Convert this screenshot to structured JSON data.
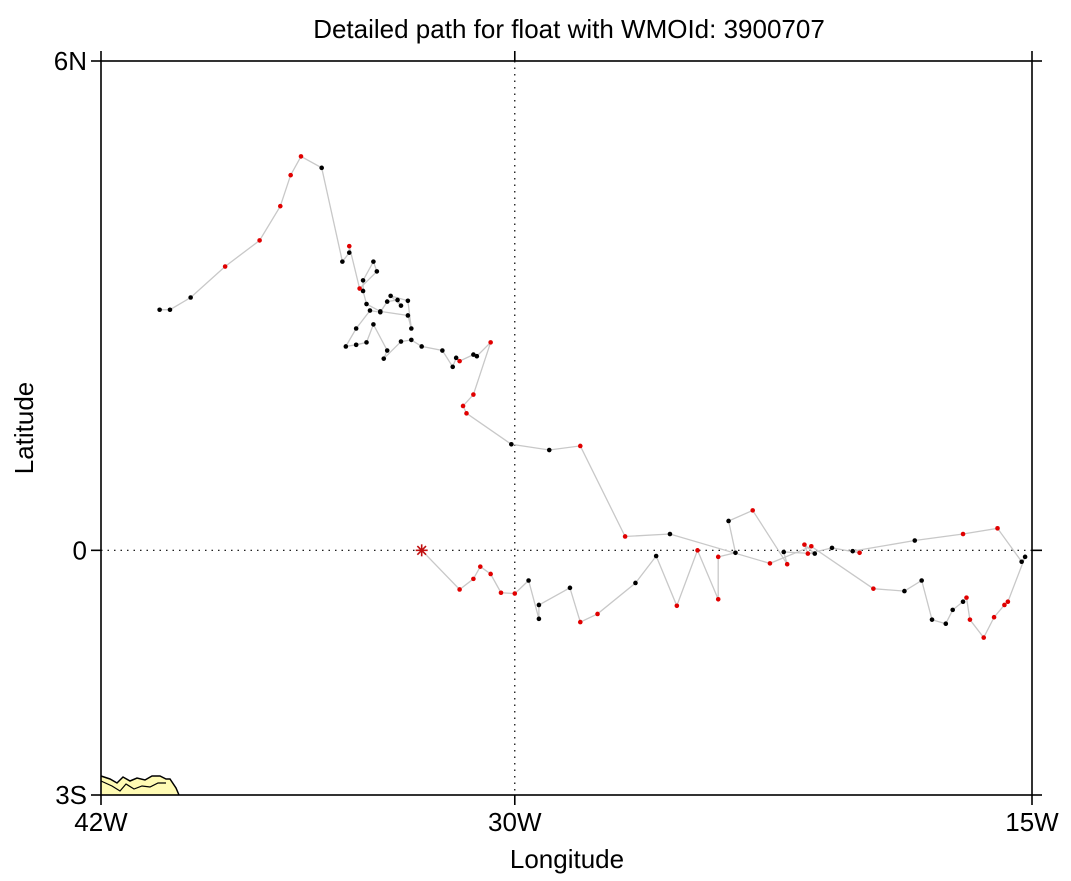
{
  "chart_data": {
    "type": "scatter",
    "title": "Detailed path for float with WMOId: 3900707",
    "xlabel": "Longitude",
    "ylabel": "Latitude",
    "xlim": [
      -42,
      -15
    ],
    "ylim": [
      -3,
      6
    ],
    "x_ticks": [
      {
        "value": -42,
        "label": "42W"
      },
      {
        "value": -30,
        "label": "30W"
      },
      {
        "value": -15,
        "label": "15W"
      }
    ],
    "y_ticks": [
      {
        "value": 6,
        "label": "6N"
      },
      {
        "value": 0,
        "label": "0"
      },
      {
        "value": -3,
        "label": "3S"
      }
    ],
    "reference_lines": {
      "x": -30,
      "y": 0
    },
    "grid": false,
    "deploy_marker": {
      "lon": -32.7,
      "lat": 0.0
    },
    "colors": {
      "red": "#e00000",
      "black": "#000000",
      "path": "#c8c8c8",
      "land": "#fffbb4"
    },
    "path": [
      {
        "lon": -32.7,
        "lat": 0.0,
        "c": "start"
      },
      {
        "lon": -31.6,
        "lat": -0.48,
        "c": "red"
      },
      {
        "lon": -31.2,
        "lat": -0.35,
        "c": "red"
      },
      {
        "lon": -31.0,
        "lat": -0.2,
        "c": "red"
      },
      {
        "lon": -30.7,
        "lat": -0.29,
        "c": "red"
      },
      {
        "lon": -30.4,
        "lat": -0.52,
        "c": "red"
      },
      {
        "lon": -30.0,
        "lat": -0.53,
        "c": "red"
      },
      {
        "lon": -29.6,
        "lat": -0.37,
        "c": "black"
      },
      {
        "lon": -29.3,
        "lat": -0.84,
        "c": "black"
      },
      {
        "lon": -29.3,
        "lat": -0.67,
        "c": "black"
      },
      {
        "lon": -28.4,
        "lat": -0.46,
        "c": "black"
      },
      {
        "lon": -28.1,
        "lat": -0.88,
        "c": "red"
      },
      {
        "lon": -27.6,
        "lat": -0.78,
        "c": "red"
      },
      {
        "lon": -26.5,
        "lat": -0.4,
        "c": "black"
      },
      {
        "lon": -25.9,
        "lat": -0.07,
        "c": "black"
      },
      {
        "lon": -25.3,
        "lat": -0.68,
        "c": "red"
      },
      {
        "lon": -24.7,
        "lat": 0.0,
        "c": "red"
      },
      {
        "lon": -24.1,
        "lat": -0.6,
        "c": "red"
      },
      {
        "lon": -24.1,
        "lat": -0.08,
        "c": "red"
      },
      {
        "lon": -23.6,
        "lat": -0.03,
        "c": "black"
      },
      {
        "lon": -23.8,
        "lat": 0.36,
        "c": "black"
      },
      {
        "lon": -23.1,
        "lat": 0.49,
        "c": "red"
      },
      {
        "lon": -22.1,
        "lat": -0.17,
        "c": "red"
      },
      {
        "lon": -22.2,
        "lat": -0.02,
        "c": "black"
      },
      {
        "lon": -21.3,
        "lat": -0.04,
        "c": "black"
      },
      {
        "lon": -21.6,
        "lat": 0.07,
        "c": "red"
      },
      {
        "lon": -21.5,
        "lat": -0.04,
        "c": "red"
      },
      {
        "lon": -20.8,
        "lat": 0.03,
        "c": "black"
      },
      {
        "lon": -20.0,
        "lat": -0.03,
        "c": "red"
      },
      {
        "lon": -20.2,
        "lat": -0.01,
        "c": "black"
      },
      {
        "lon": -18.4,
        "lat": 0.12,
        "c": "black"
      },
      {
        "lon": -17.0,
        "lat": 0.2,
        "c": "red"
      },
      {
        "lon": -16.0,
        "lat": 0.27,
        "c": "red"
      },
      {
        "lon": -15.3,
        "lat": -0.14,
        "c": "black"
      },
      {
        "lon": -15.2,
        "lat": -0.08,
        "c": "black"
      },
      {
        "lon": -15.7,
        "lat": -0.63,
        "c": "red"
      },
      {
        "lon": -15.8,
        "lat": -0.67,
        "c": "red"
      },
      {
        "lon": -16.1,
        "lat": -0.82,
        "c": "red"
      },
      {
        "lon": -16.4,
        "lat": -1.07,
        "c": "red"
      },
      {
        "lon": -16.8,
        "lat": -0.85,
        "c": "red"
      },
      {
        "lon": -16.9,
        "lat": -0.58,
        "c": "red"
      },
      {
        "lon": -17.0,
        "lat": -0.63,
        "c": "black"
      },
      {
        "lon": -17.3,
        "lat": -0.73,
        "c": "black"
      },
      {
        "lon": -17.5,
        "lat": -0.9,
        "c": "black"
      },
      {
        "lon": -17.9,
        "lat": -0.85,
        "c": "black"
      },
      {
        "lon": -18.2,
        "lat": -0.37,
        "c": "black"
      },
      {
        "lon": -18.7,
        "lat": -0.5,
        "c": "black"
      },
      {
        "lon": -19.6,
        "lat": -0.47,
        "c": "red"
      },
      {
        "lon": -21.4,
        "lat": 0.05,
        "c": "red"
      },
      {
        "lon": -22.6,
        "lat": -0.16,
        "c": "red"
      },
      {
        "lon": -25.5,
        "lat": 0.2,
        "c": "black"
      },
      {
        "lon": -26.8,
        "lat": 0.17,
        "c": "red"
      },
      {
        "lon": -28.1,
        "lat": 1.28,
        "c": "red"
      },
      {
        "lon": -29.0,
        "lat": 1.23,
        "c": "black"
      },
      {
        "lon": -30.1,
        "lat": 1.3,
        "c": "black"
      },
      {
        "lon": -31.4,
        "lat": 1.68,
        "c": "red"
      },
      {
        "lon": -31.5,
        "lat": 1.77,
        "c": "red"
      },
      {
        "lon": -31.2,
        "lat": 1.91,
        "c": "red"
      },
      {
        "lon": -30.7,
        "lat": 2.55,
        "c": "red"
      },
      {
        "lon": -31.1,
        "lat": 2.38,
        "c": "black"
      },
      {
        "lon": -31.2,
        "lat": 2.4,
        "c": "black"
      },
      {
        "lon": -31.6,
        "lat": 2.32,
        "c": "red"
      },
      {
        "lon": -31.7,
        "lat": 2.36,
        "c": "black"
      },
      {
        "lon": -31.8,
        "lat": 2.25,
        "c": "black"
      },
      {
        "lon": -32.1,
        "lat": 2.45,
        "c": "black"
      },
      {
        "lon": -32.7,
        "lat": 2.5,
        "c": "black"
      },
      {
        "lon": -33.0,
        "lat": 2.58,
        "c": "black"
      },
      {
        "lon": -33.3,
        "lat": 2.56,
        "c": "black"
      },
      {
        "lon": -33.8,
        "lat": 2.35,
        "c": "black"
      },
      {
        "lon": -33.7,
        "lat": 2.45,
        "c": "black"
      },
      {
        "lon": -34.1,
        "lat": 2.77,
        "c": "black"
      },
      {
        "lon": -34.3,
        "lat": 2.55,
        "c": "black"
      },
      {
        "lon": -34.6,
        "lat": 2.52,
        "c": "black"
      },
      {
        "lon": -34.9,
        "lat": 2.5,
        "c": "black"
      },
      {
        "lon": -34.6,
        "lat": 2.72,
        "c": "black"
      },
      {
        "lon": -34.2,
        "lat": 2.94,
        "c": "black"
      },
      {
        "lon": -33.9,
        "lat": 2.92,
        "c": "black"
      },
      {
        "lon": -33.7,
        "lat": 3.05,
        "c": "black"
      },
      {
        "lon": -33.4,
        "lat": 3.07,
        "c": "black"
      },
      {
        "lon": -33.3,
        "lat": 3.0,
        "c": "black"
      },
      {
        "lon": -33.6,
        "lat": 3.12,
        "c": "black"
      },
      {
        "lon": -33.1,
        "lat": 3.06,
        "c": "black"
      },
      {
        "lon": -33.0,
        "lat": 2.72,
        "c": "black"
      },
      {
        "lon": -33.1,
        "lat": 2.88,
        "c": "black"
      },
      {
        "lon": -33.9,
        "lat": 2.93,
        "c": "black"
      },
      {
        "lon": -34.3,
        "lat": 3.02,
        "c": "black"
      },
      {
        "lon": -34.4,
        "lat": 3.18,
        "c": "black"
      },
      {
        "lon": -34.4,
        "lat": 3.31,
        "c": "black"
      },
      {
        "lon": -34.1,
        "lat": 3.54,
        "c": "black"
      },
      {
        "lon": -34.0,
        "lat": 3.42,
        "c": "black"
      },
      {
        "lon": -34.5,
        "lat": 3.21,
        "c": "red"
      },
      {
        "lon": -34.8,
        "lat": 3.73,
        "c": "red"
      },
      {
        "lon": -34.8,
        "lat": 3.65,
        "c": "black"
      },
      {
        "lon": -35.0,
        "lat": 3.54,
        "c": "black"
      },
      {
        "lon": -35.6,
        "lat": 4.69,
        "c": "black"
      },
      {
        "lon": -36.2,
        "lat": 4.83,
        "c": "red"
      },
      {
        "lon": -36.5,
        "lat": 4.6,
        "c": "red"
      },
      {
        "lon": -36.8,
        "lat": 4.22,
        "c": "red"
      },
      {
        "lon": -37.4,
        "lat": 3.8,
        "c": "red"
      },
      {
        "lon": -38.4,
        "lat": 3.48,
        "c": "red"
      },
      {
        "lon": -39.4,
        "lat": 3.1,
        "c": "black"
      },
      {
        "lon": -40.0,
        "lat": 2.95,
        "c": "black"
      },
      {
        "lon": -40.3,
        "lat": 2.95,
        "c": "black"
      }
    ]
  }
}
